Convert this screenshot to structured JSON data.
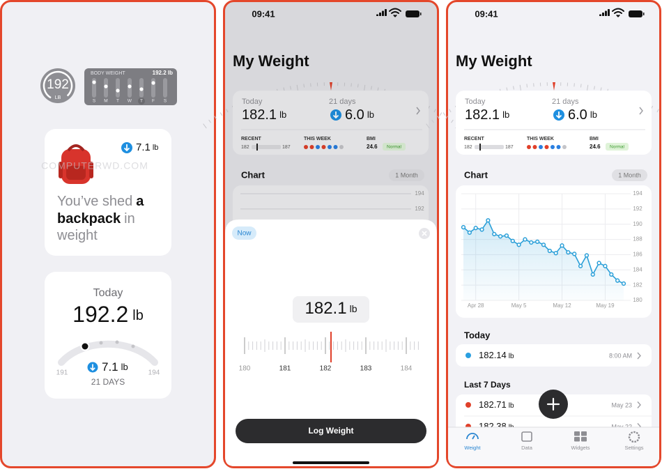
{
  "watermark": "COMPUTERWD.COM",
  "widgets": {
    "circle": {
      "value": "192",
      "unit": "LB"
    },
    "body_weight": {
      "title": "BODY WEIGHT",
      "value": "192.2 lb",
      "days": [
        "S",
        "M",
        "T",
        "W",
        "T",
        "F",
        "S"
      ]
    },
    "backpack": {
      "change": "7.1",
      "unit": "lb",
      "message": [
        [
          "You’ve shed",
          "a"
        ],
        [
          "backpack",
          "in"
        ],
        [
          "weight"
        ]
      ]
    },
    "today": {
      "label": "Today",
      "value": "192.2",
      "unit": "lb",
      "min": "191",
      "max": "194",
      "change": "7.1",
      "change_unit": "lb",
      "period": "21 DAYS"
    }
  },
  "screens": [
    {
      "time": "09:41",
      "title": "My Weight",
      "summary": {
        "today_label": "Today",
        "today_value": "182.1",
        "unit": "lb",
        "days_label": "21 days",
        "days_value": "6.0",
        "recent": "RECENT",
        "recent_min": "182",
        "recent_max": "187",
        "week": "THIS WEEK",
        "bmi": "BMI",
        "bmi_value": "24.6",
        "bmi_status": "Normal"
      },
      "chart_title": "Chart",
      "range": "1 Month",
      "sheet": {
        "badge": "Now",
        "value": "182.1",
        "unit": "lb",
        "ruler": [
          "180",
          "181",
          "182",
          "183",
          "184"
        ],
        "button": "Log Weight"
      }
    },
    {
      "time": "09:41",
      "title": "My Weight",
      "summary": {
        "today_label": "Today",
        "today_value": "182.1",
        "unit": "lb",
        "days_label": "21 days",
        "days_value": "6.0",
        "recent": "RECENT",
        "recent_min": "182",
        "recent_max": "187",
        "week": "THIS WEEK",
        "bmi": "BMI",
        "bmi_value": "24.6",
        "bmi_status": "Normal"
      },
      "chart_title": "Chart",
      "range": "1 Month",
      "today_title": "Today",
      "today_entry": {
        "value": "182.14",
        "unit": "lb",
        "time": "8:00 AM"
      },
      "week_title": "Last 7 Days",
      "week_entries": [
        {
          "value": "182.71",
          "unit": "lb",
          "date": "May 23"
        },
        {
          "value": "182.38",
          "unit": "lb",
          "date": "May 22"
        }
      ],
      "tabs": [
        "Weight",
        "Data",
        "Widgets",
        "Settings"
      ]
    }
  ],
  "chart_data": {
    "type": "line",
    "color": "#2a9fd8",
    "categories": [
      null,
      null,
      "Apr 28",
      null,
      null,
      null,
      null,
      null,
      null,
      "May 5",
      null,
      null,
      null,
      null,
      null,
      null,
      "May 12",
      null,
      null,
      null,
      null,
      null,
      null,
      "May 19",
      null,
      null,
      null
    ],
    "values": [
      189.6,
      188.9,
      189.5,
      189.3,
      190.5,
      188.7,
      188.4,
      188.5,
      187.8,
      187.3,
      188.0,
      187.6,
      187.7,
      187.3,
      186.5,
      186.2,
      187.2,
      186.3,
      186.1,
      184.5,
      185.9,
      183.4,
      184.9,
      184.5,
      183.4,
      182.6,
      182.2
    ],
    "ylim": [
      180,
      194
    ],
    "yticks": [
      180,
      182,
      184,
      186,
      188,
      190,
      192,
      194
    ],
    "grid": true
  }
}
